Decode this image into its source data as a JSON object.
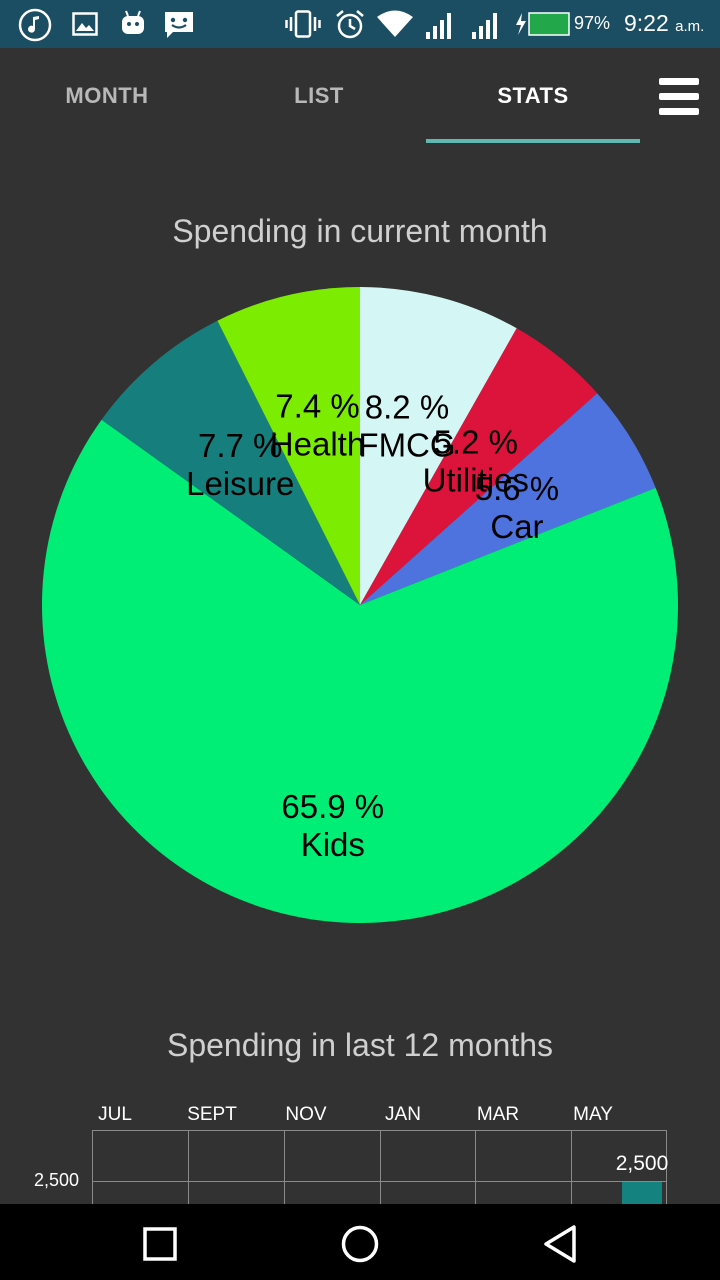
{
  "status_bar": {
    "battery_percent": "97%",
    "time": "9:22",
    "ampm": "a.m.",
    "icons": [
      "music-note-icon",
      "image-icon",
      "android-icon",
      "message-icon",
      "vibrate-icon",
      "alarm-icon",
      "wifi-icon",
      "signal-icon",
      "signal-icon",
      "battery-charging-icon"
    ]
  },
  "tabs": [
    {
      "label": "MONTH",
      "active": false
    },
    {
      "label": "LIST",
      "active": false
    },
    {
      "label": "STATS",
      "active": true
    }
  ],
  "menu": {
    "icon": "hamburger-menu-icon"
  },
  "pie_section": {
    "title": "Spending in current month"
  },
  "bar_section": {
    "title": "Spending in last 12 months"
  },
  "chart_data": [
    {
      "type": "pie",
      "title": "Spending in current month",
      "slices": [
        {
          "label": "FMCG",
          "percent_text": "8.2 %",
          "value": 8.2,
          "color": "#d4f7f5"
        },
        {
          "label": "Utilities",
          "percent_text": "5.2 %",
          "value": 5.2,
          "color": "#dc143c"
        },
        {
          "label": "Car",
          "percent_text": "5.6 %",
          "value": 5.6,
          "color": "#4e73df"
        },
        {
          "label": "Kids",
          "percent_text": "65.9 %",
          "value": 65.9,
          "color": "#00ee76"
        },
        {
          "label": "Leisure",
          "percent_text": "7.7 %",
          "value": 7.7,
          "color": "#167e7c"
        },
        {
          "label": "Health",
          "percent_text": "7.4 %",
          "value": 7.4,
          "color": "#7cec00"
        }
      ]
    },
    {
      "type": "bar",
      "title": "Spending in last 12 months",
      "x_tick_labels": [
        "JUL",
        "SEPT",
        "NOV",
        "JAN",
        "MAR",
        "MAY"
      ],
      "y_tick_labels": [
        "2,500"
      ],
      "visible_bars": [
        {
          "category": "MAY",
          "value": 2500,
          "label": "2,500",
          "color": "#14837f"
        }
      ]
    }
  ],
  "nav_bar": {
    "buttons": [
      "recent-apps-button",
      "home-button",
      "back-button"
    ]
  }
}
